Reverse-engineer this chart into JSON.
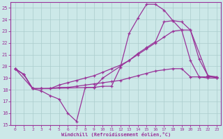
{
  "bg_color": "#cce8e8",
  "grid_color": "#aacccc",
  "line_color": "#993399",
  "xlabel": "Windchill (Refroidissement éolien,°C)",
  "xlim": [
    -0.5,
    23.5
  ],
  "ylim": [
    15,
    25.5
  ],
  "xticks": [
    0,
    1,
    2,
    3,
    4,
    5,
    6,
    7,
    8,
    9,
    10,
    11,
    12,
    13,
    14,
    15,
    16,
    17,
    18,
    19,
    20,
    21,
    22,
    23
  ],
  "yticks": [
    15,
    16,
    17,
    18,
    19,
    20,
    21,
    22,
    23,
    24,
    25
  ],
  "line1_x": [
    0,
    1,
    2,
    3,
    4,
    5,
    6,
    7,
    8,
    9,
    10,
    11,
    12,
    13,
    14,
    15,
    16,
    17,
    18,
    19,
    20,
    21,
    22,
    23
  ],
  "line1_y": [
    19.8,
    19.3,
    18.1,
    17.9,
    17.5,
    17.2,
    16.0,
    15.3,
    18.2,
    18.2,
    18.3,
    18.3,
    19.9,
    22.8,
    24.1,
    25.3,
    25.3,
    24.8,
    23.9,
    23.1,
    20.5,
    19.1,
    19.0,
    19.0
  ],
  "line2_x": [
    0,
    1,
    2,
    3,
    4,
    5,
    6,
    7,
    8,
    9,
    10,
    11,
    12,
    13,
    14,
    15,
    16,
    17,
    18,
    19,
    20,
    21,
    22,
    23
  ],
  "line2_y": [
    19.8,
    19.3,
    18.1,
    18.1,
    18.1,
    18.2,
    18.2,
    18.3,
    18.4,
    18.5,
    18.6,
    18.7,
    18.8,
    19.0,
    19.2,
    19.4,
    19.6,
    19.7,
    19.8,
    19.8,
    19.1,
    19.1,
    19.1,
    19.1
  ],
  "line3_x": [
    0,
    1,
    2,
    3,
    4,
    5,
    6,
    7,
    8,
    9,
    10,
    11,
    12,
    13,
    14,
    15,
    16,
    17,
    18,
    19,
    20,
    21,
    22,
    23
  ],
  "line3_y": [
    19.8,
    19.3,
    18.1,
    18.1,
    18.1,
    18.4,
    18.6,
    18.8,
    19.0,
    19.2,
    19.5,
    19.8,
    20.1,
    20.5,
    21.0,
    21.5,
    22.0,
    22.5,
    23.0,
    23.1,
    23.1,
    20.6,
    19.2,
    19.0
  ],
  "line4_x": [
    0,
    2,
    3,
    9,
    10,
    13,
    14,
    15,
    16,
    17,
    18,
    19,
    20,
    22,
    23
  ],
  "line4_y": [
    19.8,
    18.1,
    18.1,
    18.2,
    19.0,
    20.5,
    21.1,
    21.6,
    22.1,
    23.8,
    23.9,
    23.8,
    23.1,
    19.2,
    19.1
  ]
}
